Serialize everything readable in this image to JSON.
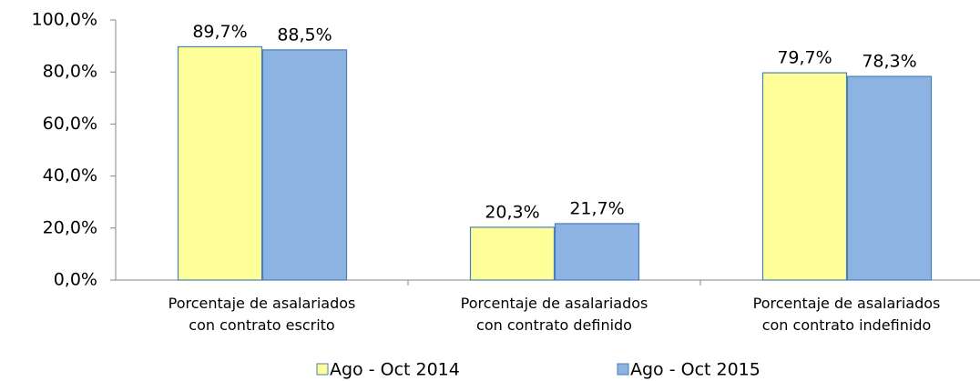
{
  "chart_data": {
    "type": "bar",
    "categories": [
      "Porcentaje de asalariados\ncon contrato escrito",
      "Porcentaje de asalariados\ncon contrato definido",
      "Porcentaje de asalariados\ncon contrato indefinido"
    ],
    "series": [
      {
        "name": "Ago - Oct 2014",
        "color": "#ffff99",
        "values": [
          89.7,
          20.3,
          79.7
        ],
        "value_labels": [
          "89,7%",
          "20,3%",
          "79,7%"
        ]
      },
      {
        "name": "Ago - Oct 2015",
        "color": "#8db3e2",
        "values": [
          88.5,
          21.7,
          78.3
        ],
        "value_labels": [
          "88,5%",
          "21,7%",
          "78,3%"
        ]
      }
    ],
    "ylim": [
      0,
      100
    ],
    "yticks": [
      {
        "value": 0,
        "label": "0,0%"
      },
      {
        "value": 20,
        "label": "20,0%"
      },
      {
        "value": 40,
        "label": "40,0%"
      },
      {
        "value": 60,
        "label": "60,0%"
      },
      {
        "value": 80,
        "label": "80,0%"
      },
      {
        "value": 100,
        "label": "100,0%"
      }
    ],
    "legend": "bottom"
  }
}
